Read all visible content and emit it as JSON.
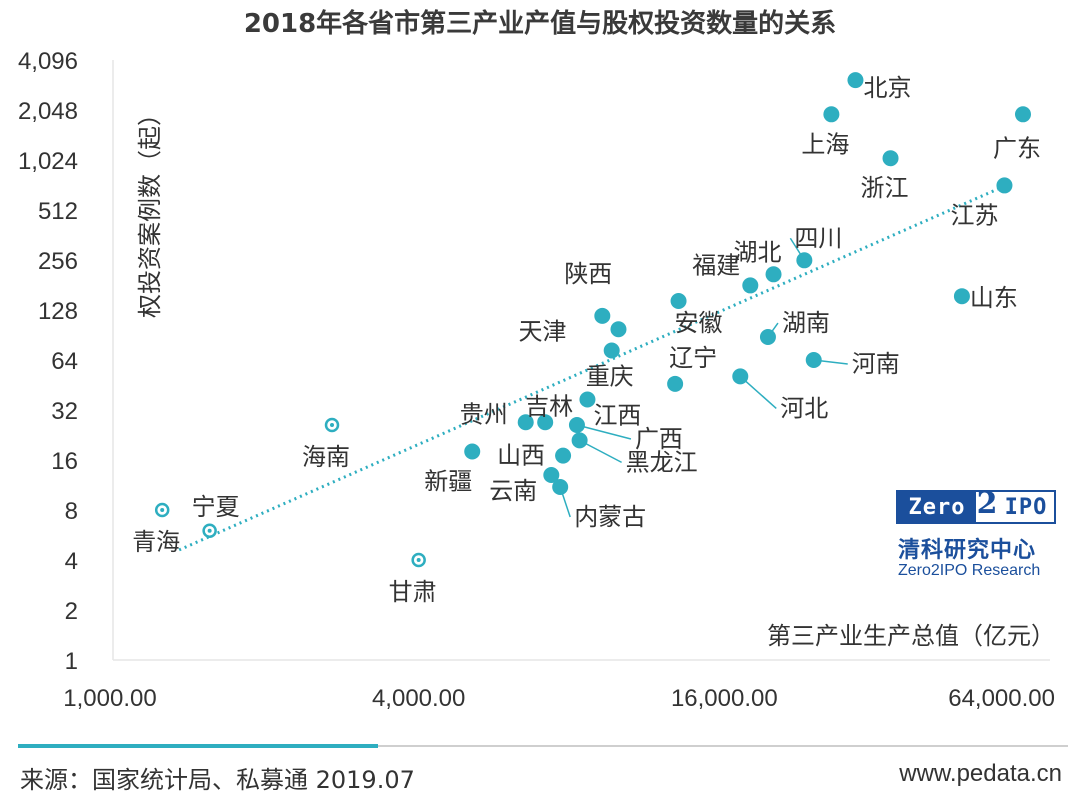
{
  "chart_data": {
    "type": "scatter",
    "title": "2018年各省市第三产业产值与股权投资数量的关系",
    "xlabel": "第三产业生产总值（亿元）",
    "ylabel": "权投资案例数（起）",
    "x_scale": "log",
    "y_scale": "log",
    "xlim": [
      1000,
      64000
    ],
    "ylim": [
      1,
      4096
    ],
    "x_ticks": [
      "1,000.00",
      "4,000.00",
      "16,000.00",
      "64,000.00"
    ],
    "y_ticks": [
      "1",
      "2",
      "4",
      "8",
      "16",
      "32",
      "64",
      "128",
      "256",
      "512",
      "1,024",
      "2,048",
      "4,096"
    ],
    "trendline": {
      "style": "dotted",
      "from": [
        1350,
        4.6
      ],
      "to": [
        58000,
        730
      ]
    },
    "points": [
      {
        "name": "北京",
        "x": 29000,
        "y": 3100
      },
      {
        "name": "上海",
        "x": 26000,
        "y": 1930
      },
      {
        "name": "广东",
        "x": 62000,
        "y": 1930
      },
      {
        "name": "浙江",
        "x": 34000,
        "y": 1050
      },
      {
        "name": "江苏",
        "x": 57000,
        "y": 720
      },
      {
        "name": "四川",
        "x": 23000,
        "y": 255
      },
      {
        "name": "湖北",
        "x": 20000,
        "y": 210
      },
      {
        "name": "福建",
        "x": 18000,
        "y": 180
      },
      {
        "name": "山东",
        "x": 47000,
        "y": 155
      },
      {
        "name": "安徽",
        "x": 13000,
        "y": 145
      },
      {
        "name": "陕西",
        "x": 9200,
        "y": 118
      },
      {
        "name": "天津",
        "x": 9900,
        "y": 98
      },
      {
        "name": "湖南",
        "x": 19500,
        "y": 88
      },
      {
        "name": "重庆",
        "x": 9600,
        "y": 73
      },
      {
        "name": "河南",
        "x": 24000,
        "y": 64
      },
      {
        "name": "河北",
        "x": 17200,
        "y": 51
      },
      {
        "name": "辽宁",
        "x": 12800,
        "y": 46
      },
      {
        "name": "江西",
        "x": 8600,
        "y": 37
      },
      {
        "name": "贵州",
        "x": 6500,
        "y": 27
      },
      {
        "name": "吉林",
        "x": 7100,
        "y": 27
      },
      {
        "name": "广西",
        "x": 8200,
        "y": 26
      },
      {
        "name": "黑龙江",
        "x": 8300,
        "y": 21
      },
      {
        "name": "新疆",
        "x": 5100,
        "y": 18
      },
      {
        "name": "山西",
        "x": 7700,
        "y": 17
      },
      {
        "name": "云南",
        "x": 7300,
        "y": 13
      },
      {
        "name": "内蒙古",
        "x": 7600,
        "y": 11
      },
      {
        "name": "海南",
        "x": 2700,
        "y": 26
      },
      {
        "name": "青海",
        "x": 1250,
        "y": 8
      },
      {
        "name": "宁夏",
        "x": 1550,
        "y": 6
      },
      {
        "name": "甘肃",
        "x": 4000,
        "y": 4
      }
    ]
  },
  "source": "来源：国家统计局、私募通 2019.07",
  "website": "www.pedata.cn",
  "logo": {
    "zero": "Zero",
    "two": "2",
    "ipo": "IPO",
    "cn": "清科研究中心",
    "en": "Zero2IPO Research"
  },
  "colors": {
    "marker": "#2eaec0",
    "trendline": "#2eaec0",
    "accent_bar": "#2eaec0",
    "logo": "#1b4f9c"
  }
}
